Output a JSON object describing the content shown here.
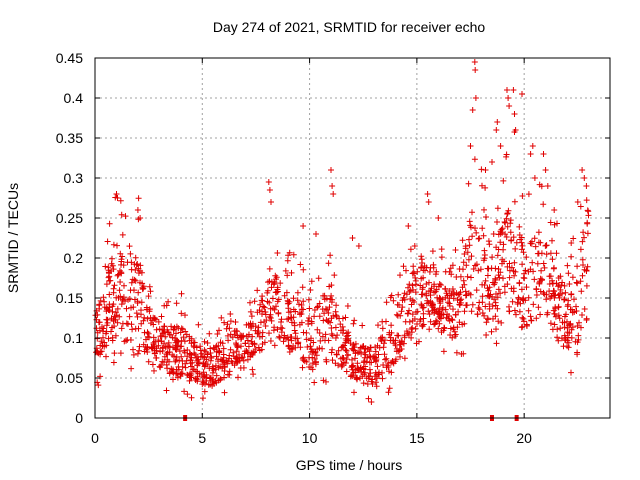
{
  "chart_data": {
    "type": "scatter",
    "title": "Day 274 of 2021, SRMTID for receiver echo",
    "xlabel": "GPS time / hours",
    "ylabel": "SRMTID / TECUs",
    "xlim": [
      0,
      24
    ],
    "ylim": [
      0,
      0.45
    ],
    "x_ticks": [
      0,
      5,
      10,
      15,
      20
    ],
    "x_tick_labels": [
      "0",
      "5",
      "10",
      "15",
      "20"
    ],
    "y_ticks": [
      0,
      0.05,
      0.1,
      0.15,
      0.2,
      0.25,
      0.3,
      0.35,
      0.4,
      0.45
    ],
    "y_tick_labels": [
      "0",
      "0.05",
      "0.1",
      "0.15",
      "0.2",
      "0.25",
      "0.3",
      "0.35",
      "0.4",
      "0.45"
    ],
    "grid": true,
    "marker": "plus",
    "color": "#e00000",
    "gap_marks_x": [
      4.2,
      18.5,
      19.65
    ],
    "series": [
      {
        "name": "SRMTID",
        "envelope": [
          [
            0.0,
            0.06,
            0.13
          ],
          [
            0.5,
            0.09,
            0.17
          ],
          [
            1.0,
            0.1,
            0.22
          ],
          [
            1.5,
            0.08,
            0.19
          ],
          [
            2.0,
            0.09,
            0.21
          ],
          [
            2.5,
            0.07,
            0.14
          ],
          [
            3.0,
            0.06,
            0.12
          ],
          [
            3.5,
            0.05,
            0.11
          ],
          [
            4.0,
            0.05,
            0.12
          ],
          [
            4.5,
            0.05,
            0.1
          ],
          [
            5.0,
            0.04,
            0.09
          ],
          [
            5.5,
            0.04,
            0.09
          ],
          [
            6.0,
            0.05,
            0.1
          ],
          [
            6.5,
            0.06,
            0.11
          ],
          [
            7.0,
            0.07,
            0.12
          ],
          [
            7.5,
            0.08,
            0.13
          ],
          [
            8.0,
            0.09,
            0.17
          ],
          [
            8.5,
            0.09,
            0.18
          ],
          [
            9.0,
            0.08,
            0.16
          ],
          [
            9.5,
            0.08,
            0.17
          ],
          [
            10.0,
            0.06,
            0.13
          ],
          [
            10.5,
            0.06,
            0.15
          ],
          [
            11.0,
            0.07,
            0.17
          ],
          [
            11.5,
            0.06,
            0.13
          ],
          [
            12.0,
            0.05,
            0.1
          ],
          [
            12.5,
            0.04,
            0.09
          ],
          [
            13.0,
            0.04,
            0.09
          ],
          [
            13.5,
            0.05,
            0.11
          ],
          [
            14.0,
            0.07,
            0.13
          ],
          [
            14.5,
            0.09,
            0.17
          ],
          [
            15.0,
            0.11,
            0.19
          ],
          [
            15.5,
            0.12,
            0.2
          ],
          [
            16.0,
            0.11,
            0.18
          ],
          [
            16.5,
            0.1,
            0.16
          ],
          [
            17.0,
            0.1,
            0.17
          ],
          [
            17.5,
            0.12,
            0.26
          ],
          [
            18.0,
            0.13,
            0.27
          ],
          [
            18.5,
            0.1,
            0.21
          ],
          [
            19.0,
            0.11,
            0.24
          ],
          [
            19.5,
            0.13,
            0.28
          ],
          [
            20.0,
            0.1,
            0.21
          ],
          [
            20.5,
            0.12,
            0.25
          ],
          [
            21.0,
            0.13,
            0.22
          ],
          [
            21.5,
            0.1,
            0.2
          ],
          [
            22.0,
            0.08,
            0.15
          ],
          [
            22.5,
            0.09,
            0.2
          ],
          [
            23.0,
            0.12,
            0.27
          ]
        ],
        "peaks": [
          [
            1.0,
            0.28
          ],
          [
            1.05,
            0.275
          ],
          [
            2.0,
            0.26
          ],
          [
            2.1,
            0.25
          ],
          [
            8.1,
            0.295
          ],
          [
            8.15,
            0.285
          ],
          [
            8.2,
            0.27
          ],
          [
            9.7,
            0.24
          ],
          [
            10.3,
            0.23
          ],
          [
            11.0,
            0.31
          ],
          [
            11.05,
            0.29
          ],
          [
            11.1,
            0.28
          ],
          [
            12.0,
            0.225
          ],
          [
            12.3,
            0.215
          ],
          [
            14.6,
            0.24
          ],
          [
            15.5,
            0.28
          ],
          [
            15.55,
            0.27
          ],
          [
            16.0,
            0.25
          ],
          [
            16.8,
            0.21
          ],
          [
            17.5,
            0.34
          ],
          [
            17.6,
            0.385
          ],
          [
            17.7,
            0.445
          ],
          [
            17.72,
            0.435
          ],
          [
            17.75,
            0.4
          ],
          [
            18.2,
            0.31
          ],
          [
            18.5,
            0.32
          ],
          [
            18.7,
            0.36
          ],
          [
            18.75,
            0.37
          ],
          [
            18.9,
            0.34
          ],
          [
            19.2,
            0.41
          ],
          [
            19.25,
            0.4
          ],
          [
            19.3,
            0.39
          ],
          [
            19.5,
            0.41
          ],
          [
            19.55,
            0.38
          ],
          [
            19.6,
            0.36
          ],
          [
            19.9,
            0.405
          ],
          [
            20.3,
            0.33
          ],
          [
            20.4,
            0.34
          ],
          [
            20.5,
            0.3
          ],
          [
            20.9,
            0.33
          ],
          [
            21.0,
            0.31
          ],
          [
            21.1,
            0.29
          ],
          [
            21.4,
            0.26
          ],
          [
            22.5,
            0.27
          ],
          [
            22.7,
            0.31
          ],
          [
            22.8,
            0.3
          ],
          [
            22.9,
            0.29
          ]
        ]
      }
    ]
  }
}
